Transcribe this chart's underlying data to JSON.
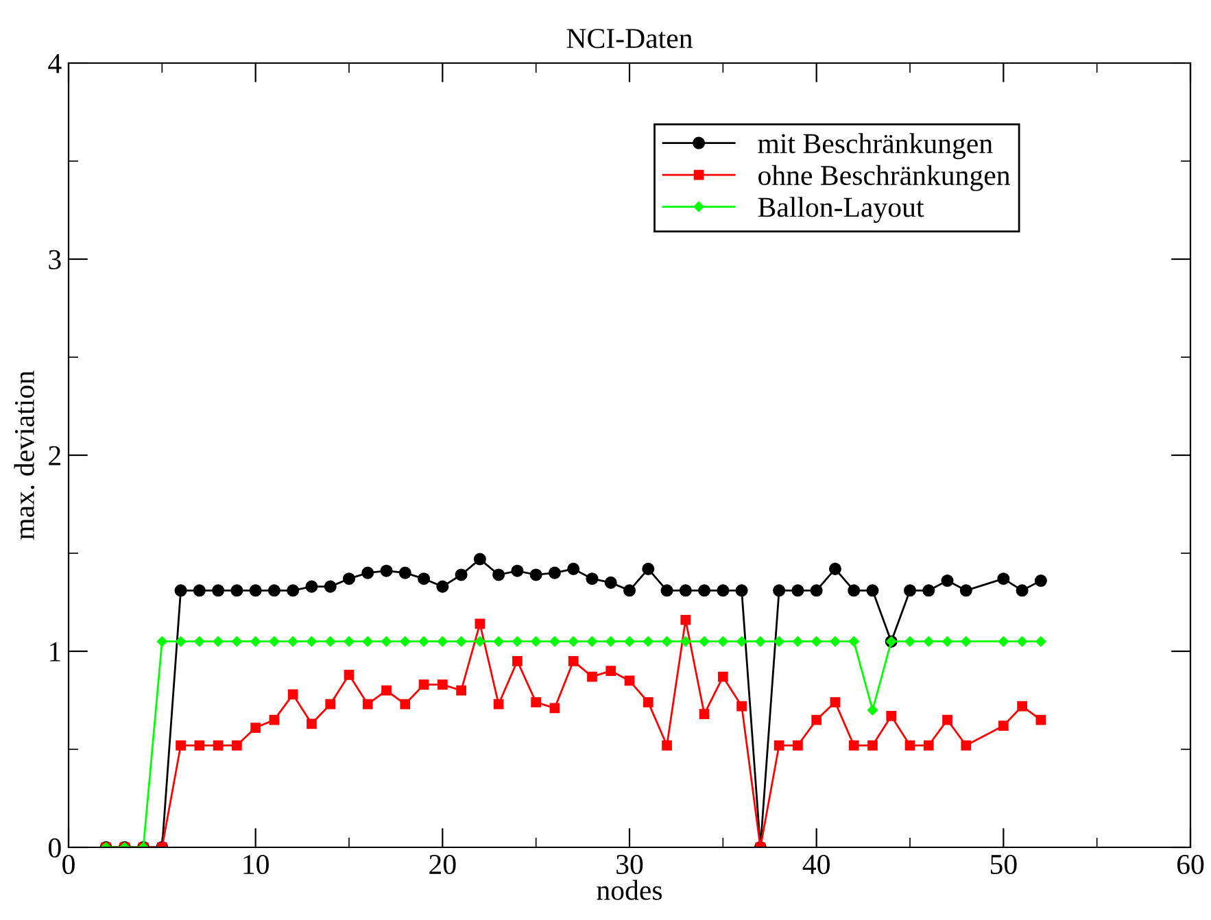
{
  "chart_data": {
    "type": "line",
    "title": "NCI-Daten",
    "xlabel": "nodes",
    "ylabel": "max. deviation",
    "x": [
      2,
      3,
      4,
      5,
      6,
      7,
      8,
      9,
      10,
      11,
      12,
      13,
      14,
      15,
      16,
      17,
      18,
      19,
      20,
      21,
      22,
      23,
      24,
      25,
      26,
      27,
      28,
      29,
      30,
      31,
      32,
      33,
      34,
      35,
      36,
      37,
      38,
      39,
      40,
      41,
      42,
      43,
      44,
      45,
      46,
      47,
      48,
      50,
      51,
      52
    ],
    "series": [
      {
        "name": "mit Beschränkungen",
        "color": "#000000",
        "marker": "circle",
        "values": [
          0,
          0,
          0,
          0,
          1.31,
          1.31,
          1.31,
          1.31,
          1.31,
          1.31,
          1.31,
          1.33,
          1.33,
          1.37,
          1.4,
          1.41,
          1.4,
          1.37,
          1.33,
          1.39,
          1.47,
          1.39,
          1.41,
          1.39,
          1.4,
          1.42,
          1.37,
          1.35,
          1.31,
          1.42,
          1.31,
          1.31,
          1.31,
          1.31,
          1.31,
          0,
          1.31,
          1.31,
          1.31,
          1.42,
          1.31,
          1.31,
          1.05,
          1.31,
          1.31,
          1.36,
          1.31,
          1.37,
          1.31,
          1.36
        ]
      },
      {
        "name": "ohne Beschränkungen",
        "color": "#ff0000",
        "marker": "square",
        "values": [
          0,
          0,
          0,
          0,
          0.52,
          0.52,
          0.52,
          0.52,
          0.61,
          0.65,
          0.78,
          0.63,
          0.73,
          0.88,
          0.73,
          0.8,
          0.73,
          0.83,
          0.83,
          0.8,
          1.14,
          0.73,
          0.95,
          0.74,
          0.71,
          0.95,
          0.87,
          0.9,
          0.85,
          0.74,
          0.52,
          1.16,
          0.68,
          0.87,
          0.72,
          0,
          0.52,
          0.52,
          0.65,
          0.74,
          0.52,
          0.52,
          0.67,
          0.52,
          0.52,
          0.65,
          0.52,
          0.62,
          0.72,
          0.65
        ]
      },
      {
        "name": "Ballon-Layout",
        "color": "#00ff00",
        "marker": "diamond",
        "values": [
          0,
          0,
          0,
          1.05,
          1.05,
          1.05,
          1.05,
          1.05,
          1.05,
          1.05,
          1.05,
          1.05,
          1.05,
          1.05,
          1.05,
          1.05,
          1.05,
          1.05,
          1.05,
          1.05,
          1.05,
          1.05,
          1.05,
          1.05,
          1.05,
          1.05,
          1.05,
          1.05,
          1.05,
          1.05,
          1.05,
          1.05,
          1.05,
          1.05,
          1.05,
          1.05,
          1.05,
          1.05,
          1.05,
          1.05,
          1.05,
          0.7,
          1.05,
          1.05,
          1.05,
          1.05,
          1.05,
          1.05,
          1.05,
          1.05
        ]
      }
    ],
    "xlim": [
      0,
      60
    ],
    "ylim": [
      0,
      4
    ],
    "xticks": [
      0,
      {
        "value": 5,
        "label": null
      },
      10,
      {
        "value": 15,
        "label": null
      },
      20,
      {
        "value": 25,
        "label": null
      },
      30,
      {
        "value": 35,
        "label": null
      },
      40,
      {
        "value": 45,
        "label": null
      },
      50,
      {
        "value": 55,
        "label": null
      },
      60
    ],
    "yticks": [
      0,
      {
        "value": 0.5,
        "label": null
      },
      1,
      {
        "value": 1.5,
        "label": null
      },
      2,
      {
        "value": 2.5,
        "label": null
      },
      3,
      {
        "value": 3.5,
        "label": null
      },
      4
    ],
    "grid": false,
    "legend": "top right",
    "line_style": "solid"
  }
}
